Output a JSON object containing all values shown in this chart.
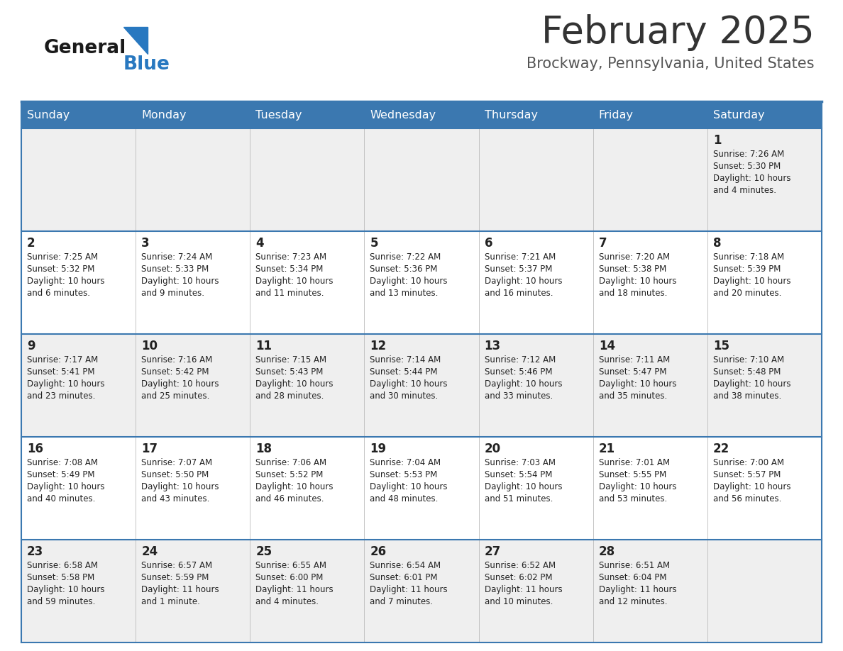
{
  "title": "February 2025",
  "subtitle": "Brockway, Pennsylvania, United States",
  "header_bg": "#3b78b0",
  "header_text": "#ffffff",
  "day_names": [
    "Sunday",
    "Monday",
    "Tuesday",
    "Wednesday",
    "Thursday",
    "Friday",
    "Saturday"
  ],
  "odd_row_bg": "#efefef",
  "even_row_bg": "#ffffff",
  "cell_text_color": "#222222",
  "day_num_color": "#222222",
  "border_color": "#3b78b0",
  "logo_general_color": "#1a1a1a",
  "logo_blue_color": "#2878c0",
  "logo_triangle_color": "#2878c0",
  "title_color": "#333333",
  "subtitle_color": "#555555",
  "calendar": [
    [
      {
        "day": "",
        "sunrise": "",
        "sunset": "",
        "daylight": ""
      },
      {
        "day": "",
        "sunrise": "",
        "sunset": "",
        "daylight": ""
      },
      {
        "day": "",
        "sunrise": "",
        "sunset": "",
        "daylight": ""
      },
      {
        "day": "",
        "sunrise": "",
        "sunset": "",
        "daylight": ""
      },
      {
        "day": "",
        "sunrise": "",
        "sunset": "",
        "daylight": ""
      },
      {
        "day": "",
        "sunrise": "",
        "sunset": "",
        "daylight": ""
      },
      {
        "day": "1",
        "sunrise": "7:26 AM",
        "sunset": "5:30 PM",
        "daylight": "10 hours\nand 4 minutes."
      }
    ],
    [
      {
        "day": "2",
        "sunrise": "7:25 AM",
        "sunset": "5:32 PM",
        "daylight": "10 hours\nand 6 minutes."
      },
      {
        "day": "3",
        "sunrise": "7:24 AM",
        "sunset": "5:33 PM",
        "daylight": "10 hours\nand 9 minutes."
      },
      {
        "day": "4",
        "sunrise": "7:23 AM",
        "sunset": "5:34 PM",
        "daylight": "10 hours\nand 11 minutes."
      },
      {
        "day": "5",
        "sunrise": "7:22 AM",
        "sunset": "5:36 PM",
        "daylight": "10 hours\nand 13 minutes."
      },
      {
        "day": "6",
        "sunrise": "7:21 AM",
        "sunset": "5:37 PM",
        "daylight": "10 hours\nand 16 minutes."
      },
      {
        "day": "7",
        "sunrise": "7:20 AM",
        "sunset": "5:38 PM",
        "daylight": "10 hours\nand 18 minutes."
      },
      {
        "day": "8",
        "sunrise": "7:18 AM",
        "sunset": "5:39 PM",
        "daylight": "10 hours\nand 20 minutes."
      }
    ],
    [
      {
        "day": "9",
        "sunrise": "7:17 AM",
        "sunset": "5:41 PM",
        "daylight": "10 hours\nand 23 minutes."
      },
      {
        "day": "10",
        "sunrise": "7:16 AM",
        "sunset": "5:42 PM",
        "daylight": "10 hours\nand 25 minutes."
      },
      {
        "day": "11",
        "sunrise": "7:15 AM",
        "sunset": "5:43 PM",
        "daylight": "10 hours\nand 28 minutes."
      },
      {
        "day": "12",
        "sunrise": "7:14 AM",
        "sunset": "5:44 PM",
        "daylight": "10 hours\nand 30 minutes."
      },
      {
        "day": "13",
        "sunrise": "7:12 AM",
        "sunset": "5:46 PM",
        "daylight": "10 hours\nand 33 minutes."
      },
      {
        "day": "14",
        "sunrise": "7:11 AM",
        "sunset": "5:47 PM",
        "daylight": "10 hours\nand 35 minutes."
      },
      {
        "day": "15",
        "sunrise": "7:10 AM",
        "sunset": "5:48 PM",
        "daylight": "10 hours\nand 38 minutes."
      }
    ],
    [
      {
        "day": "16",
        "sunrise": "7:08 AM",
        "sunset": "5:49 PM",
        "daylight": "10 hours\nand 40 minutes."
      },
      {
        "day": "17",
        "sunrise": "7:07 AM",
        "sunset": "5:50 PM",
        "daylight": "10 hours\nand 43 minutes."
      },
      {
        "day": "18",
        "sunrise": "7:06 AM",
        "sunset": "5:52 PM",
        "daylight": "10 hours\nand 46 minutes."
      },
      {
        "day": "19",
        "sunrise": "7:04 AM",
        "sunset": "5:53 PM",
        "daylight": "10 hours\nand 48 minutes."
      },
      {
        "day": "20",
        "sunrise": "7:03 AM",
        "sunset": "5:54 PM",
        "daylight": "10 hours\nand 51 minutes."
      },
      {
        "day": "21",
        "sunrise": "7:01 AM",
        "sunset": "5:55 PM",
        "daylight": "10 hours\nand 53 minutes."
      },
      {
        "day": "22",
        "sunrise": "7:00 AM",
        "sunset": "5:57 PM",
        "daylight": "10 hours\nand 56 minutes."
      }
    ],
    [
      {
        "day": "23",
        "sunrise": "6:58 AM",
        "sunset": "5:58 PM",
        "daylight": "10 hours\nand 59 minutes."
      },
      {
        "day": "24",
        "sunrise": "6:57 AM",
        "sunset": "5:59 PM",
        "daylight": "11 hours\nand 1 minute."
      },
      {
        "day": "25",
        "sunrise": "6:55 AM",
        "sunset": "6:00 PM",
        "daylight": "11 hours\nand 4 minutes."
      },
      {
        "day": "26",
        "sunrise": "6:54 AM",
        "sunset": "6:01 PM",
        "daylight": "11 hours\nand 7 minutes."
      },
      {
        "day": "27",
        "sunrise": "6:52 AM",
        "sunset": "6:02 PM",
        "daylight": "11 hours\nand 10 minutes."
      },
      {
        "day": "28",
        "sunrise": "6:51 AM",
        "sunset": "6:04 PM",
        "daylight": "11 hours\nand 12 minutes."
      },
      {
        "day": "",
        "sunrise": "",
        "sunset": "",
        "daylight": ""
      }
    ]
  ]
}
